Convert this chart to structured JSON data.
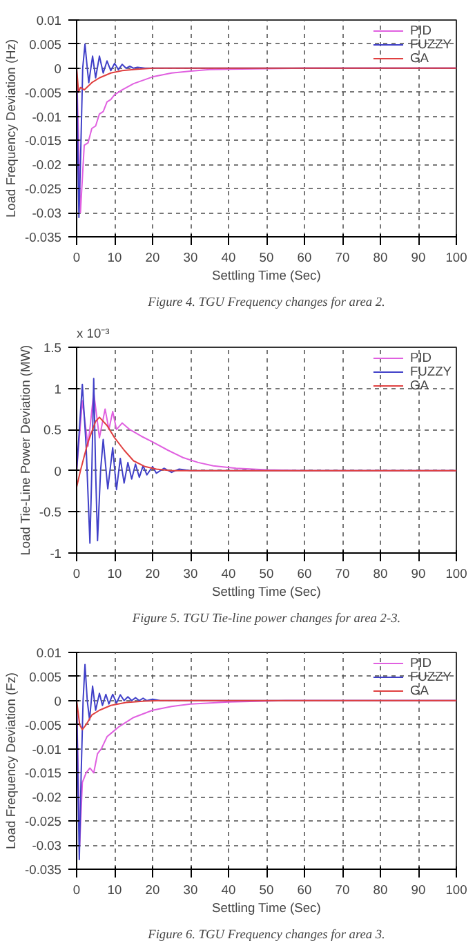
{
  "chart_data": [
    {
      "type": "line",
      "xlabel": "Settling Time (Sec)",
      "ylabel": "Load Frequency Deviation (Hz)",
      "xlim": [
        0,
        100
      ],
      "ylim": [
        -0.035,
        0.01
      ],
      "xticks": [
        0,
        10,
        20,
        30,
        40,
        50,
        60,
        70,
        80,
        90,
        100
      ],
      "yticks": [
        -0.035,
        -0.03,
        -0.025,
        -0.02,
        -0.015,
        -0.01,
        -0.005,
        0,
        0.005,
        0.01
      ],
      "grid": true,
      "legend": "top right",
      "annotations": [
        "Figure 4. TGU Frequency changes for area 2."
      ],
      "series": [
        {
          "name": "PID",
          "color": "#e060e0",
          "x": [
            0,
            1,
            2,
            3,
            4,
            5,
            6,
            7,
            8,
            9,
            10,
            12,
            15,
            20,
            25,
            30,
            35,
            40,
            50,
            60,
            100
          ],
          "values": [
            0,
            -0.03,
            -0.016,
            -0.0155,
            -0.0125,
            -0.012,
            -0.0095,
            -0.009,
            -0.007,
            -0.0065,
            -0.0055,
            -0.0045,
            -0.0032,
            -0.0018,
            -0.001,
            -0.0006,
            -0.0003,
            -0.0002,
            -0.0001,
            0,
            0
          ]
        },
        {
          "name": "FUZZY",
          "color": "#4040c8",
          "x": [
            0,
            0.6,
            1,
            1.6,
            2.2,
            2.8,
            3.2,
            4.2,
            5,
            6,
            7,
            8,
            9,
            10,
            11,
            12,
            13,
            14,
            15,
            16,
            18,
            100
          ],
          "values": [
            0,
            -0.031,
            -0.02,
            0,
            0.005,
            0,
            -0.003,
            0.0025,
            -0.002,
            0.0025,
            -0.001,
            0.0015,
            -0.0005,
            0.001,
            -0.0003,
            0.0008,
            0,
            0.0004,
            0,
            0.0002,
            0,
            0
          ]
        },
        {
          "name": "GA",
          "color": "#e04040",
          "x": [
            0,
            0.5,
            1,
            2,
            4,
            6,
            9,
            12,
            16,
            20,
            100
          ],
          "values": [
            0,
            -0.005,
            -0.004,
            -0.0045,
            -0.003,
            -0.002,
            -0.001,
            -0.0005,
            -0.0002,
            0,
            0
          ]
        }
      ]
    },
    {
      "type": "line",
      "xlabel": "Settling Time (Sec)",
      "ylabel": "Load Tie-Line Power Deviation (MW)",
      "xlim": [
        0,
        100
      ],
      "ylim": [
        -1,
        1.5
      ],
      "xticks": [
        0,
        10,
        20,
        30,
        40,
        50,
        60,
        70,
        80,
        90,
        100
      ],
      "yticks": [
        -1,
        -0.5,
        0,
        0.5,
        1,
        1.5
      ],
      "grid": true,
      "legend": "top right",
      "annotations": [
        "x 10⁻³",
        "Figure 5. TGU Tie-line power changes for area 2-3."
      ],
      "series": [
        {
          "name": "PID",
          "color": "#e060e0",
          "x": [
            0,
            1.5,
            3,
            4.5,
            6,
            7.5,
            8.5,
            9.5,
            10.5,
            12,
            14,
            17,
            20,
            24,
            28,
            32,
            36,
            42,
            50,
            60,
            100
          ],
          "values": [
            0,
            0.85,
            0.3,
            0.95,
            0.4,
            0.75,
            0.5,
            0.72,
            0.5,
            0.58,
            0.5,
            0.42,
            0.35,
            0.25,
            0.16,
            0.1,
            0.06,
            0.03,
            0.01,
            0,
            0
          ]
        },
        {
          "name": "FUZZY",
          "color": "#4040c8",
          "x": [
            0,
            1.5,
            2.5,
            3.5,
            4,
            4.5,
            5,
            5.5,
            6.3,
            7,
            8.2,
            9.5,
            10.5,
            11.5,
            12.5,
            13.5,
            14.5,
            15.5,
            16.5,
            17.5,
            18.5,
            20,
            21,
            23,
            25,
            27,
            30,
            100
          ],
          "values": [
            0,
            1.05,
            0.3,
            -0.88,
            0,
            1.12,
            0,
            -0.85,
            0,
            0.38,
            -0.22,
            0.28,
            -0.23,
            0.15,
            -0.15,
            0.1,
            -0.1,
            0.08,
            -0.08,
            0.06,
            -0.05,
            0.05,
            -0.03,
            0.03,
            -0.02,
            0.02,
            0,
            0
          ]
        },
        {
          "name": "GA",
          "color": "#e04040",
          "x": [
            0,
            1,
            3,
            5,
            6,
            8,
            10,
            12.5,
            15,
            18,
            21,
            25,
            100
          ],
          "values": [
            -0.2,
            0,
            0.35,
            0.6,
            0.65,
            0.55,
            0.4,
            0.25,
            0.12,
            0.05,
            0.02,
            0,
            0
          ]
        }
      ]
    },
    {
      "type": "line",
      "xlabel": "Settling Time (Sec)",
      "ylabel": "Load Frequency Deviation (Fz)",
      "xlim": [
        0,
        100
      ],
      "ylim": [
        -0.035,
        0.01
      ],
      "xticks": [
        0,
        10,
        20,
        30,
        40,
        50,
        60,
        70,
        80,
        90,
        100
      ],
      "yticks": [
        -0.035,
        -0.03,
        -0.025,
        -0.02,
        -0.015,
        -0.01,
        -0.005,
        0,
        0.005,
        0.01
      ],
      "grid": true,
      "legend": "top right",
      "annotations": [
        "Figure 6. TGU Frequency changes for area 3."
      ],
      "series": [
        {
          "name": "PID",
          "color": "#e060e0",
          "x": [
            0,
            0.8,
            1.5,
            2.5,
            3.5,
            4.5,
            5.5,
            6.5,
            8,
            9.5,
            11,
            13,
            15,
            20,
            25,
            30,
            40,
            55,
            100
          ],
          "values": [
            0,
            -0.03,
            -0.017,
            -0.015,
            -0.014,
            -0.015,
            -0.011,
            -0.01,
            -0.0075,
            -0.0065,
            -0.0055,
            -0.0045,
            -0.0035,
            -0.002,
            -0.0012,
            -0.0007,
            -0.0003,
            0,
            0
          ]
        },
        {
          "name": "FUZZY",
          "color": "#4040c8",
          "x": [
            0,
            0.7,
            1.2,
            1.7,
            2.2,
            2.8,
            3.4,
            4.2,
            5,
            6,
            6.8,
            7.7,
            8.5,
            9.5,
            10.5,
            11.5,
            12.5,
            13.5,
            14.5,
            15.5,
            16.5,
            17.5,
            18.5,
            20,
            22,
            100
          ],
          "values": [
            0,
            -0.033,
            -0.015,
            0,
            0.0075,
            0,
            -0.004,
            0.003,
            -0.002,
            0.0015,
            -0.001,
            0.0013,
            -0.0007,
            0.0013,
            -0.0005,
            0.0012,
            0,
            0.0008,
            0,
            0.0006,
            0,
            0.0005,
            0,
            0.0003,
            0,
            0
          ]
        },
        {
          "name": "GA",
          "color": "#e04040",
          "x": [
            0,
            0.8,
            1.5,
            2.5,
            4,
            6,
            9,
            13,
            18,
            22,
            100
          ],
          "values": [
            0,
            -0.005,
            -0.006,
            -0.005,
            -0.003,
            -0.002,
            -0.001,
            -0.0004,
            -0.0001,
            0,
            0
          ]
        }
      ]
    }
  ]
}
